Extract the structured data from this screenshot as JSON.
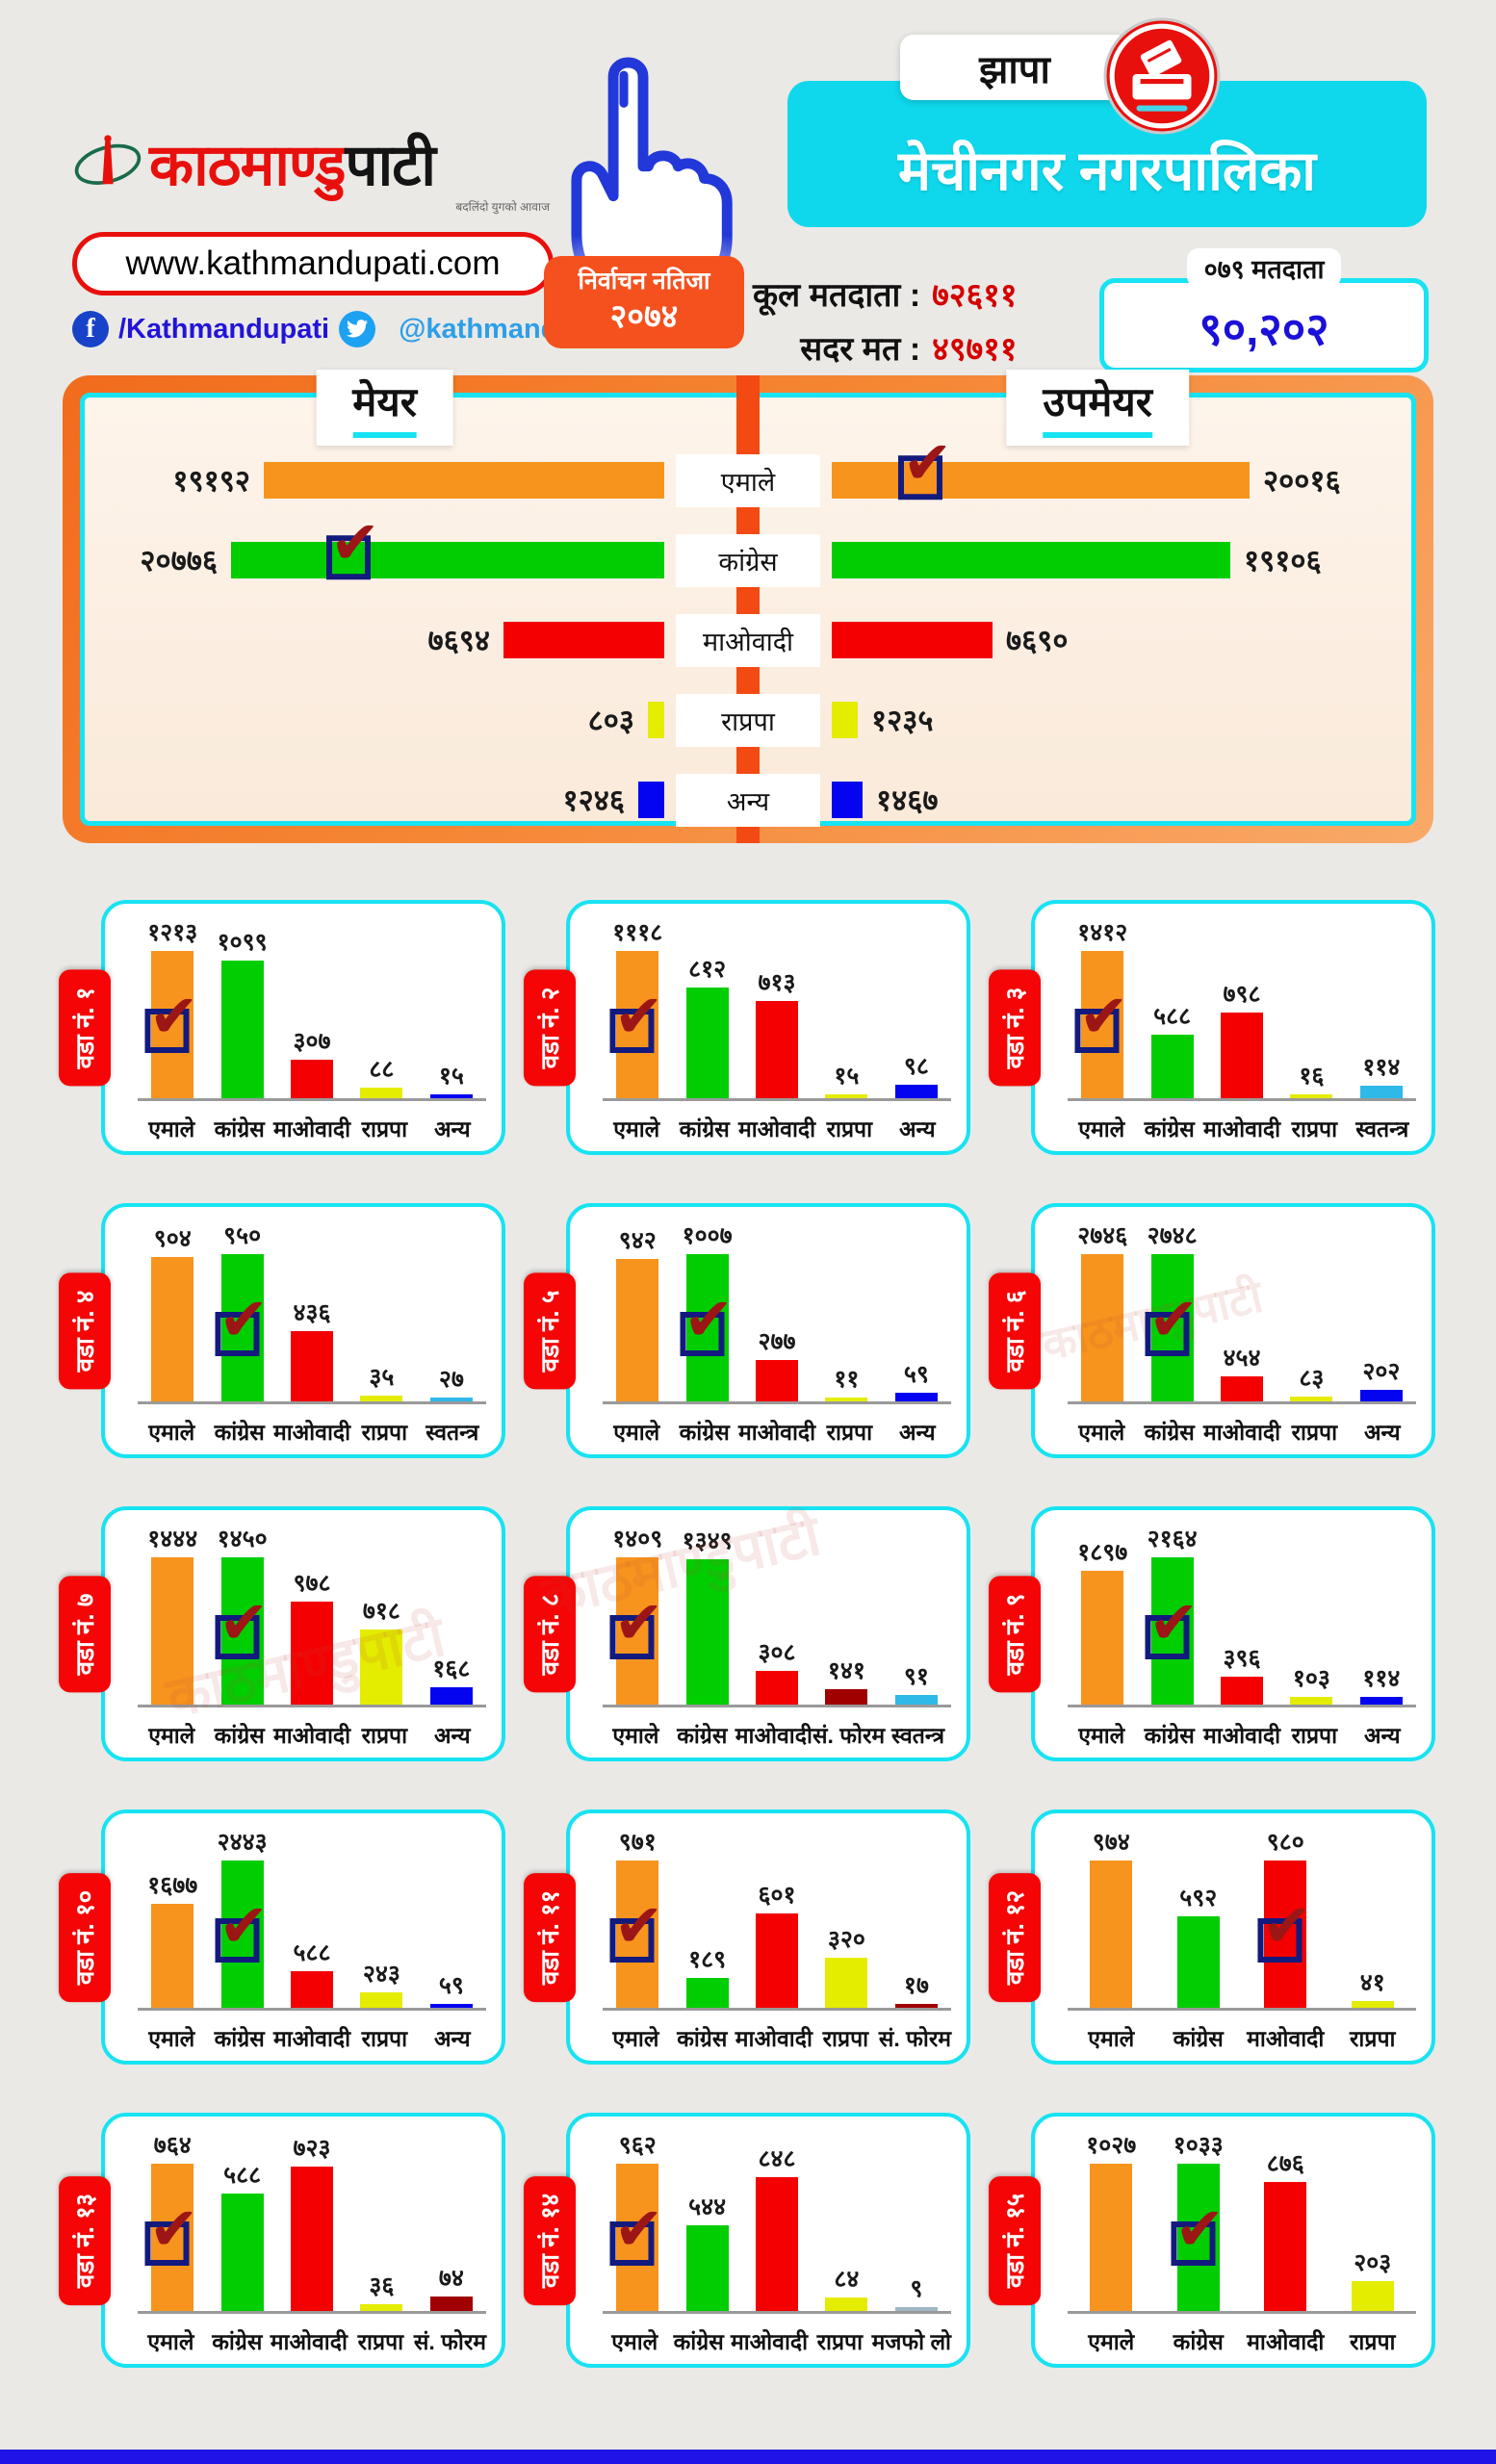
{
  "header": {
    "logo_red": "काठमाण्डु",
    "logo_black": "पाटी",
    "tagline": "बदलिंदो युगको आवाज",
    "website": "www.kathmandupati.com",
    "facebook_handle": "/Kathmandupati",
    "twitter_handle": "@kathmandupati1",
    "result_badge_line1": "निर्वाचन नतिजा",
    "result_badge_line2": "२०७४",
    "district": "झापा",
    "municipality": "मेचीनगर नगरपालिका",
    "total_voters_label": "कूल मतदाता :",
    "total_voters_value": "७२६११",
    "valid_votes_label": "सदर मत :",
    "valid_votes_value": "४९७११",
    "voters_079_label": "०७९ मतदाता",
    "voters_079_value": "९०,२०२"
  },
  "watermark_text": "काठमाण्डुपाटी",
  "party_colors": {
    "एमाले": "#F7941E",
    "कांग्रेस": "#00CE00",
    "माओवादी": "#F40000",
    "राप्रपा": "#E4EC00",
    "अन्य": "#0404F0",
    "स्वतन्त्र": "#2FB9E8",
    "सं. फोरम": "#A00000",
    "मजफो लो": "#9FB6C3"
  },
  "chart_data": {
    "type": "bar",
    "charts": [
      {
        "id": "mayor",
        "title": "मेयर",
        "orientation": "horizontal",
        "categories": [
          "एमाले",
          "कांग्रेस",
          "माओवादी",
          "राप्रपा",
          "अन्य"
        ],
        "values": [
          19192,
          20776,
          7694,
          803,
          1246
        ],
        "labels": [
          "१९१९२",
          "२०७७६",
          "७६९४",
          "८०३",
          "१२४६"
        ],
        "winner_index": 1
      },
      {
        "id": "deputy-mayor",
        "title": "उपमेयर",
        "orientation": "horizontal",
        "categories": [
          "एमाले",
          "कांग्रेस",
          "माओवादी",
          "राप्रपा",
          "अन्य"
        ],
        "values": [
          20016,
          19106,
          7690,
          1235,
          1467
        ],
        "labels": [
          "२००१६",
          "१९१०६",
          "७६९०",
          "१२३५",
          "१४६७"
        ],
        "winner_index": 0
      },
      {
        "id": "ward-1",
        "title": "वडा नं. १",
        "orientation": "vertical",
        "categories": [
          "एमाले",
          "कांग्रेस",
          "माओवादी",
          "राप्रपा",
          "अन्य"
        ],
        "values": [
          1213,
          1099,
          307,
          88,
          15
        ],
        "labels": [
          "१२१३",
          "१०९९",
          "३०७",
          "८८",
          "१५"
        ],
        "winner_index": 0
      },
      {
        "id": "ward-2",
        "title": "वडा नं. २",
        "orientation": "vertical",
        "categories": [
          "एमाले",
          "कांग्रेस",
          "माओवादी",
          "राप्रपा",
          "अन्य"
        ],
        "values": [
          1118,
          812,
          713,
          15,
          98
        ],
        "labels": [
          "१११८",
          "८१२",
          "७१३",
          "१५",
          "९८"
        ],
        "winner_index": 0
      },
      {
        "id": "ward-3",
        "title": "वडा नं. ३",
        "orientation": "vertical",
        "categories": [
          "एमाले",
          "कांग्रेस",
          "माओवादी",
          "राप्रपा",
          "स्वतन्त्र"
        ],
        "values": [
          1412,
          588,
          798,
          16,
          114
        ],
        "labels": [
          "१४१२",
          "५८८",
          "७९८",
          "१६",
          "११४"
        ],
        "winner_index": 0
      },
      {
        "id": "ward-4",
        "title": "वडा नं. ४",
        "orientation": "vertical",
        "categories": [
          "एमाले",
          "कांग्रेस",
          "माओवादी",
          "राप्रपा",
          "स्वतन्त्र"
        ],
        "values": [
          904,
          950,
          436,
          35,
          27
        ],
        "labels": [
          "९०४",
          "९५०",
          "४३६",
          "३५",
          "२७"
        ],
        "winner_index": 1
      },
      {
        "id": "ward-5",
        "title": "वडा नं. ५",
        "orientation": "vertical",
        "categories": [
          "एमाले",
          "कांग्रेस",
          "माओवादी",
          "राप्रपा",
          "अन्य"
        ],
        "values": [
          942,
          1007,
          277,
          11,
          59
        ],
        "labels": [
          "९४२",
          "१००७",
          "२७७",
          "११",
          "५९"
        ],
        "winner_index": 1
      },
      {
        "id": "ward-6",
        "title": "वडा नं. ६",
        "orientation": "vertical",
        "categories": [
          "एमाले",
          "कांग्रेस",
          "माओवादी",
          "राप्रपा",
          "अन्य"
        ],
        "values": [
          2746,
          2748,
          454,
          83,
          202
        ],
        "labels": [
          "२७४६",
          "२७४८",
          "४५४",
          "८३",
          "२०२"
        ],
        "winner_index": 1
      },
      {
        "id": "ward-7",
        "title": "वडा नं. ७",
        "orientation": "vertical",
        "categories": [
          "एमाले",
          "कांग्रेस",
          "माओवादी",
          "राप्रपा",
          "अन्य"
        ],
        "values": [
          1444,
          1450,
          978,
          718,
          168
        ],
        "labels": [
          "१४४४",
          "१४५०",
          "९७८",
          "७१८",
          "१६८"
        ],
        "winner_index": 1
      },
      {
        "id": "ward-8",
        "title": "वडा नं. ८",
        "orientation": "vertical",
        "categories": [
          "एमाले",
          "कांग्रेस",
          "माओवादी",
          "सं. फोरम",
          "स्वतन्त्र"
        ],
        "values": [
          1409,
          1349,
          308,
          141,
          91
        ],
        "labels": [
          "१४०९",
          "१३४९",
          "३०८",
          "१४१",
          "९१"
        ],
        "winner_index": 0
      },
      {
        "id": "ward-9",
        "title": "वडा नं. ९",
        "orientation": "vertical",
        "categories": [
          "एमाले",
          "कांग्रेस",
          "माओवादी",
          "राप्रपा",
          "अन्य"
        ],
        "values": [
          1897,
          2164,
          396,
          103,
          114
        ],
        "labels": [
          "१८९७",
          "२१६४",
          "३९६",
          "१०३",
          "११४"
        ],
        "winner_index": 1
      },
      {
        "id": "ward-10",
        "title": "वडा नं. १०",
        "orientation": "vertical",
        "categories": [
          "एमाले",
          "कांग्रेस",
          "माओवादी",
          "राप्रपा",
          "अन्य"
        ],
        "values": [
          1677,
          2443,
          588,
          243,
          59
        ],
        "labels": [
          "१६७७",
          "२४४३",
          "५८८",
          "२४३",
          "५९"
        ],
        "winner_index": 1
      },
      {
        "id": "ward-11",
        "title": "वडा नं. ११",
        "orientation": "vertical",
        "categories": [
          "एमाले",
          "कांग्रेस",
          "माओवादी",
          "राप्रपा",
          "सं. फोरम"
        ],
        "values": [
          971,
          189,
          601,
          320,
          17
        ],
        "labels": [
          "९७१",
          "१८९",
          "६०१",
          "३२०",
          "१७"
        ],
        "winner_index": 0
      },
      {
        "id": "ward-12",
        "title": "वडा नं. १२",
        "orientation": "vertical",
        "categories": [
          "एमाले",
          "कांग्रेस",
          "माओवादी",
          "राप्रपा"
        ],
        "values": [
          974,
          592,
          980,
          41
        ],
        "labels": [
          "९७४",
          "५९२",
          "९८०",
          "४१"
        ],
        "winner_index": 2
      },
      {
        "id": "ward-13",
        "title": "वडा नं. १३",
        "orientation": "vertical",
        "categories": [
          "एमाले",
          "कांग्रेस",
          "माओवादी",
          "राप्रपा",
          "सं. फोरम"
        ],
        "values": [
          764,
          588,
          723,
          36,
          74
        ],
        "labels": [
          "७६४",
          "५८८",
          "७२३",
          "३६",
          "७४"
        ],
        "winner_index": 0
      },
      {
        "id": "ward-14",
        "title": "वडा नं. १४",
        "orientation": "vertical",
        "categories": [
          "एमाले",
          "कांग्रेस",
          "माओवादी",
          "राप्रपा",
          "मजफो लो"
        ],
        "values": [
          962,
          544,
          848,
          84,
          9
        ],
        "labels": [
          "९६२",
          "५४४",
          "८४८",
          "८४",
          "९"
        ],
        "winner_index": 0
      },
      {
        "id": "ward-15",
        "title": "वडा नं. १५",
        "orientation": "vertical",
        "categories": [
          "एमाले",
          "कांग्रेस",
          "माओवादी",
          "राप्रपा"
        ],
        "values": [
          1027,
          1033,
          876,
          203
        ],
        "labels": [
          "१०२७",
          "१०३३",
          "८७६",
          "२०३"
        ],
        "winner_index": 1
      }
    ]
  }
}
